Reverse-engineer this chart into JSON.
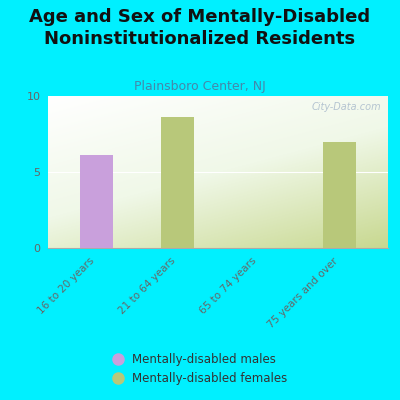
{
  "title": "Age and Sex of Mentally-Disabled\nNoninstitutionalized Residents",
  "subtitle": "Plainsboro Center, NJ",
  "categories": [
    "16 to 20 years",
    "21 to 64 years",
    "65 to 74 years",
    "75 years and over"
  ],
  "male_values": [
    6.1,
    0,
    0,
    0
  ],
  "female_values": [
    0,
    8.6,
    0,
    7.0
  ],
  "male_color": "#c9a0dc",
  "female_color": "#b8c87a",
  "bg_color": "#00f0ff",
  "chart_bg": "#e8f0d0",
  "ylim": [
    0,
    10
  ],
  "yticks": [
    0,
    5,
    10
  ],
  "watermark": "City-Data.com",
  "legend_male": "Mentally-disabled males",
  "legend_female": "Mentally-disabled females",
  "title_fontsize": 13,
  "subtitle_fontsize": 9,
  "subtitle_color": "#4488aa",
  "tick_color": "#666666",
  "bar_width": 0.4
}
